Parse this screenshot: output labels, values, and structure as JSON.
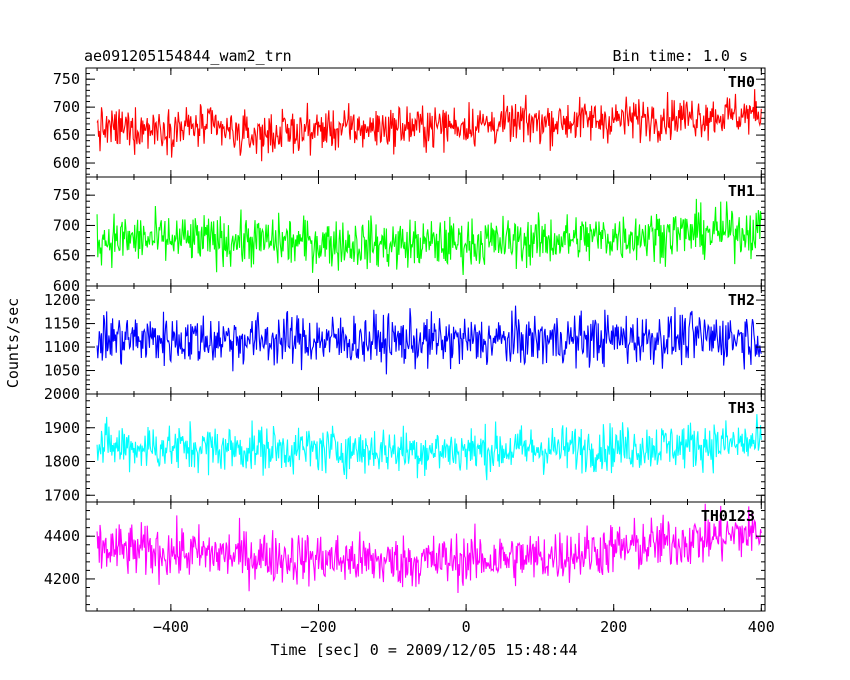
{
  "chart_data": {
    "type": "line",
    "title": "ae091205154844_wam2_trn",
    "subtitle": "Bin time: 1.0 s",
    "xlabel": "Time [sec] 0 = 2009/12/05 15:48:44",
    "ylabel": "Counts/sec",
    "xlim": [
      -515,
      405
    ],
    "x_ticks": [
      -400,
      -200,
      0,
      200,
      400
    ],
    "x_tick_labels": [
      "−400",
      "−200",
      "0",
      "200",
      "400"
    ],
    "x_start": -500,
    "x_end": 400,
    "bin_time": 1.0,
    "grid": false,
    "panels": [
      {
        "name": "TH0",
        "color": "#ff0000",
        "ylim": [
          575,
          770
        ],
        "y_ticks": [
          600,
          650,
          700,
          750
        ],
        "trend": [
          [
            -500,
            660
          ],
          [
            -350,
            665
          ],
          [
            -300,
            648
          ],
          [
            -200,
            660
          ],
          [
            0,
            668
          ],
          [
            200,
            678
          ],
          [
            400,
            688
          ]
        ],
        "noise": 26
      },
      {
        "name": "TH1",
        "color": "#00ff00",
        "ylim": [
          600,
          780
        ],
        "y_ticks": [
          600,
          650,
          700,
          750
        ],
        "trend": [
          [
            -500,
            678
          ],
          [
            -300,
            675
          ],
          [
            -100,
            668
          ],
          [
            100,
            675
          ],
          [
            300,
            688
          ],
          [
            400,
            692
          ]
        ],
        "noise": 28
      },
      {
        "name": "TH2",
        "color": "#0000ff",
        "ylim": [
          1000,
          1230
        ],
        "y_ticks": [
          1000,
          1050,
          1100,
          1150,
          1200
        ],
        "tick_labels": [
          "",
          "1050",
          "1100",
          "1150",
          "1200"
        ],
        "trend": [
          [
            -500,
            1118
          ],
          [
            -200,
            1115
          ],
          [
            0,
            1112
          ],
          [
            200,
            1118
          ],
          [
            400,
            1122
          ]
        ],
        "noise": 38
      },
      {
        "name": "TH3",
        "color": "#00ffff",
        "ylim": [
          1680,
          2000
        ],
        "y_ticks": [
          1700,
          1800,
          1900,
          2000
        ],
        "trend": [
          [
            -500,
            1845
          ],
          [
            -200,
            1835
          ],
          [
            0,
            1832
          ],
          [
            200,
            1842
          ],
          [
            400,
            1855
          ]
        ],
        "noise": 48
      },
      {
        "name": "TH0123",
        "color": "#ff00ff",
        "ylim": [
          4050,
          4560
        ],
        "y_ticks": [
          4200,
          4400
        ],
        "trend": [
          [
            -500,
            4340
          ],
          [
            -300,
            4310
          ],
          [
            -100,
            4280
          ],
          [
            100,
            4300
          ],
          [
            300,
            4380
          ],
          [
            400,
            4420
          ]
        ],
        "noise": 85
      }
    ]
  }
}
